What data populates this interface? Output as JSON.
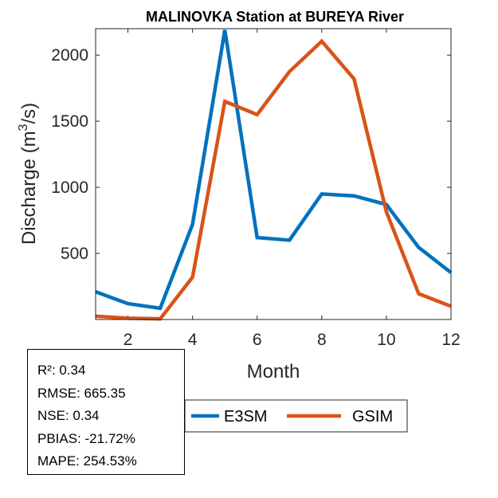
{
  "chart_data": {
    "type": "line",
    "title": "MALINOVKA  Station at  BUREYA  River",
    "xlabel": "Month",
    "ylabel": "Discharge (m",
    "ylabel_sup": "3",
    "ylabel_tail": "/s)",
    "xlim": [
      1,
      12
    ],
    "ylim": [
      0,
      2200
    ],
    "x": [
      1,
      2,
      3,
      4,
      5,
      6,
      7,
      8,
      9,
      10,
      11,
      12
    ],
    "xticks": [
      2,
      4,
      6,
      8,
      10,
      12
    ],
    "yticks": [
      500,
      1000,
      1500,
      2000
    ],
    "series": [
      {
        "name": "E3SM",
        "color": "#0072BD",
        "values": [
          210,
          120,
          85,
          720,
          2190,
          620,
          600,
          950,
          935,
          870,
          545,
          355
        ]
      },
      {
        "name": "GSIM",
        "color": "#D95319",
        "values": [
          25,
          10,
          5,
          320,
          1650,
          1550,
          1875,
          2105,
          1820,
          815,
          195,
          100
        ]
      }
    ],
    "legend": [
      "E3SM",
      "GSIM"
    ]
  },
  "stats": {
    "r2": "R²: 0.34",
    "rmse": "RMSE: 665.35",
    "nse": "NSE: 0.34",
    "pbias": "PBIAS: -21.72%",
    "mape": "MAPE: 254.53%"
  }
}
